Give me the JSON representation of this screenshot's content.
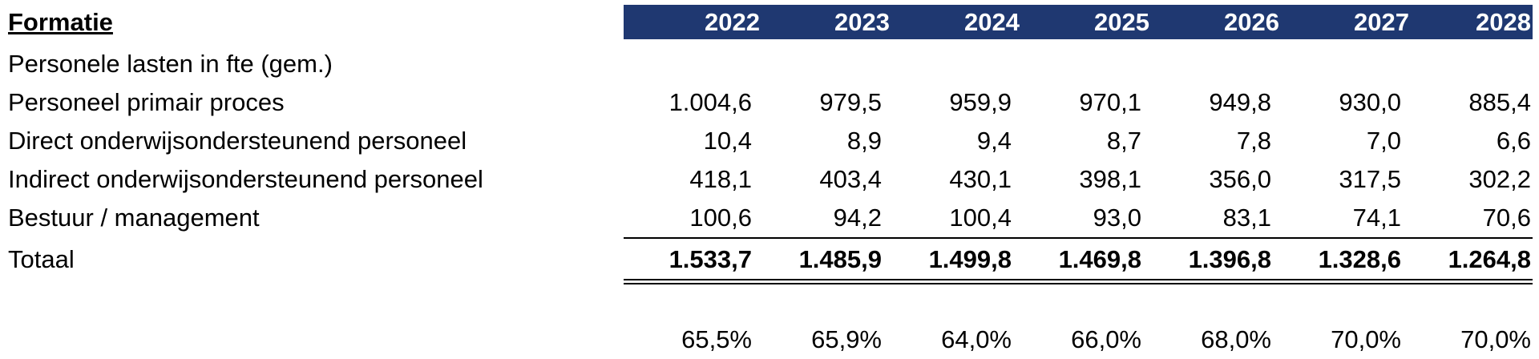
{
  "table": {
    "title": "Formatie",
    "years": [
      "2022",
      "2023",
      "2024",
      "2025",
      "2026",
      "2027",
      "2028"
    ],
    "section_label": "Personele lasten in fte (gem.)",
    "rows": [
      {
        "label": "Personeel primair proces",
        "values": [
          "1.004,6",
          "979,5",
          "959,9",
          "970,1",
          "949,8",
          "930,0",
          "885,4"
        ]
      },
      {
        "label": "Direct onderwijsondersteunend personeel",
        "values": [
          "10,4",
          "8,9",
          "9,4",
          "8,7",
          "7,8",
          "7,0",
          "6,6"
        ]
      },
      {
        "label": "Indirect onderwijsondersteunend personeel",
        "values": [
          "418,1",
          "403,4",
          "430,1",
          "398,1",
          "356,0",
          "317,5",
          "302,2"
        ]
      },
      {
        "label": "Bestuur / management",
        "values": [
          "100,6",
          "94,2",
          "100,4",
          "93,0",
          "83,1",
          "74,1",
          "70,6"
        ]
      }
    ],
    "total": {
      "label": "Totaal",
      "values": [
        "1.533,7",
        "1.485,9",
        "1.499,8",
        "1.469,8",
        "1.396,8",
        "1.328,6",
        "1.264,8"
      ]
    },
    "percentages": [
      "65,5%",
      "65,9%",
      "64,0%",
      "66,0%",
      "68,0%",
      "70,0%",
      "70,0%"
    ]
  }
}
